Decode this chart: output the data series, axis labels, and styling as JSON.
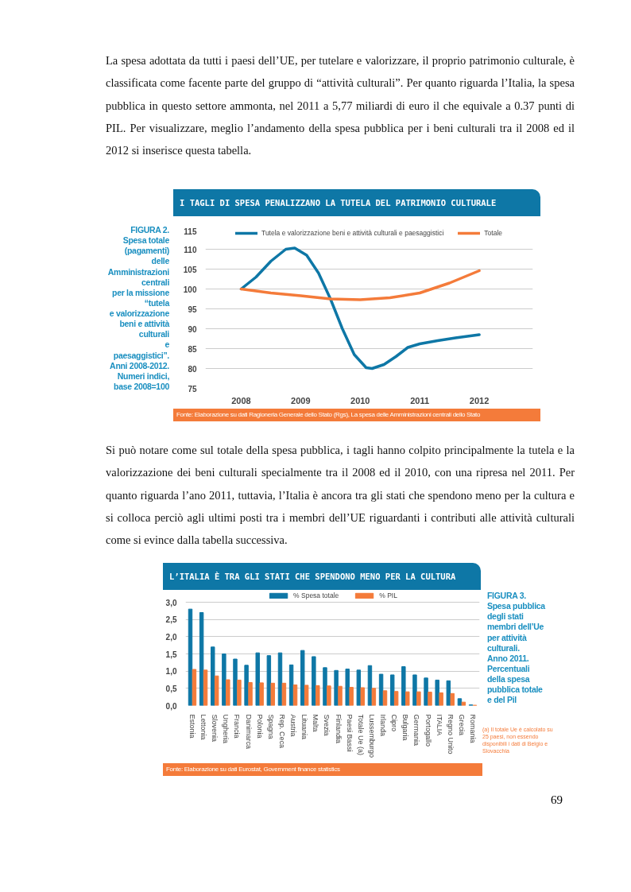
{
  "chart_data": [
    {
      "type": "line",
      "title": "I TAGLI DI SPESA PENALIZZANO LA TUTELA DEL PATRIMONIO CULTURALE",
      "annotations": [
        "La spesa adottata da tutti i paesi dell’UE, per tutelare e valorizzare, il proprio patrimonio culturale, è classificata come facente parte del gruppo di “attività culturali”. Per quanto riguarda l’Italia, la spesa pubblica in questo settore ammonta, nel 2011 a 5,77 miliardi di euro il che equivale a 0.37 punti di PIL. Per visualizzare, meglio l’andamento della spesa pubblica per i beni culturali tra il 2008 ed il 2012 si inserisce questa tabella.",
        "FIGURA 2.\nSpesa totale\n(pagamenti)\ndelle\nAmministrazioni\ncentrali\nper la missione\n“tutela\ne valorizzazione\nbeni e attività\nculturali\ne paesaggistici”.\nAnni 2008-2012.\nNumeri indici,\nbase 2008=100",
        "Fonte: Elaborazione su dati Ragioneria Generale dello Stato (Rgs), La spesa delle Amministrazioni centrali dello Stato"
      ],
      "series": [
        {
          "name": "Tutela e valorizzazione beni e attività culturali e paesaggistici",
          "color": "#0e77a6",
          "type": "line",
          "x": [
            2008,
            2008.25,
            2008.5,
            2008.75,
            2008.9,
            2009.1,
            2009.3,
            2009.5,
            2009.7,
            2009.9,
            2010.1,
            2010.2,
            2010.4,
            2010.6,
            2010.8,
            2011,
            2011.3,
            2011.6,
            2012
          ],
          "values": [
            100,
            103,
            107,
            110,
            110.3,
            108.5,
            104,
            97.5,
            90,
            83.5,
            80.2,
            80,
            81,
            83,
            85.3,
            86.2,
            87,
            87.7,
            88.5
          ]
        },
        {
          "name": "Totale",
          "color": "#f47b3a",
          "type": "line",
          "x": [
            2008,
            2008.5,
            2009,
            2009.5,
            2010,
            2010.5,
            2011,
            2011.5,
            2012
          ],
          "values": [
            100,
            99,
            98.3,
            97.5,
            97.3,
            97.8,
            99,
            101.5,
            104.6
          ]
        }
      ],
      "xlim": [
        2007.4,
        2012.9
      ],
      "xticks": [
        2008,
        2009,
        2010,
        2011,
        2012
      ],
      "ylim": [
        75,
        115
      ],
      "yticks": [
        75,
        80,
        85,
        90,
        95,
        100,
        105,
        110,
        115
      ],
      "grid": "y",
      "legend": "top",
      "marker": "none",
      "line_style": "solid"
    },
    {
      "type": "bar",
      "title": "L’ITALIA È TRA GLI STATI CHE SPENDONO MENO PER LA CULTURA",
      "annotations": [
        "Si può notare come sul totale della spesa pubblica, i tagli hanno colpito principalmente la tutela e la valorizzazione dei beni culturali specialmente tra il 2008 ed il 2010, con una ripresa nel 2011. Per quanto riguarda l’ano 2011, tuttavia, l’Italia è ancora tra gli stati che spendono meno per la cultura e si colloca perciò agli ultimi posti tra i membri dell’UE riguardanti i contributi alle attività culturali come si evince dalla tabella successiva.",
        "FIGURA 3.\nSpesa pubblica\ndegli stati\nmembri dell’Ue\nper attività\nculturali.\nAnno 2011.\nPercentuali\ndella spesa\npubblica totale\ne del Pil",
        "(a) Il totale Ue è calcolato su 25 paesi, non essendo disponibili i dati di Belgio e Slovacchia",
        "Fonte: Elaborazione su dati Eurostat, Government finance statistics",
        "69"
      ],
      "categories": [
        "Estonia",
        "Lettonia",
        "Slovenia",
        "Ungheria",
        "Francia",
        "Danimarca",
        "Polonia",
        "Spagna",
        "Rep. Ceca",
        "Austria",
        "Lituania",
        "Malta",
        "Svezia",
        "Finlandia",
        "Paesi Bassi",
        "Totale Ue (a)",
        "Lussemburgo",
        "Irlanda",
        "Cipro",
        "Bulgaria",
        "Germania",
        "Portogallo",
        "ITALIA",
        "Regno Unito",
        "Grecia",
        "Romania"
      ],
      "series": [
        {
          "name": "% Spesa totale",
          "color": "#0e77a6",
          "values": [
            2.8,
            2.7,
            1.7,
            1.5,
            1.35,
            1.17,
            1.53,
            1.45,
            1.53,
            1.18,
            1.6,
            1.42,
            1.1,
            1.02,
            1.06,
            1.03,
            1.16,
            0.91,
            0.89,
            1.13,
            0.89,
            0.8,
            0.74,
            0.72,
            0.2,
            0.02
          ]
        },
        {
          "name": "% PIL",
          "color": "#f47b3a",
          "values": [
            1.05,
            1.03,
            0.86,
            0.75,
            0.74,
            0.67,
            0.66,
            0.65,
            0.65,
            0.6,
            0.59,
            0.58,
            0.57,
            0.56,
            0.53,
            0.52,
            0.5,
            0.43,
            0.41,
            0.4,
            0.4,
            0.39,
            0.37,
            0.35,
            0.1,
            0.01
          ]
        }
      ],
      "ylim": [
        0,
        3.3
      ],
      "yticks": [
        {
          "value": 0,
          "label": "0,0"
        },
        {
          "value": 0.5,
          "label": "0,5"
        },
        {
          "value": 1,
          "label": "1,0"
        },
        {
          "value": 1.5,
          "label": "1,5"
        },
        {
          "value": 2,
          "label": "2,0"
        },
        {
          "value": 2.5,
          "label": "2,5"
        },
        {
          "value": 3,
          "label": "3,0"
        }
      ],
      "grid": "y",
      "legend": "top"
    }
  ]
}
